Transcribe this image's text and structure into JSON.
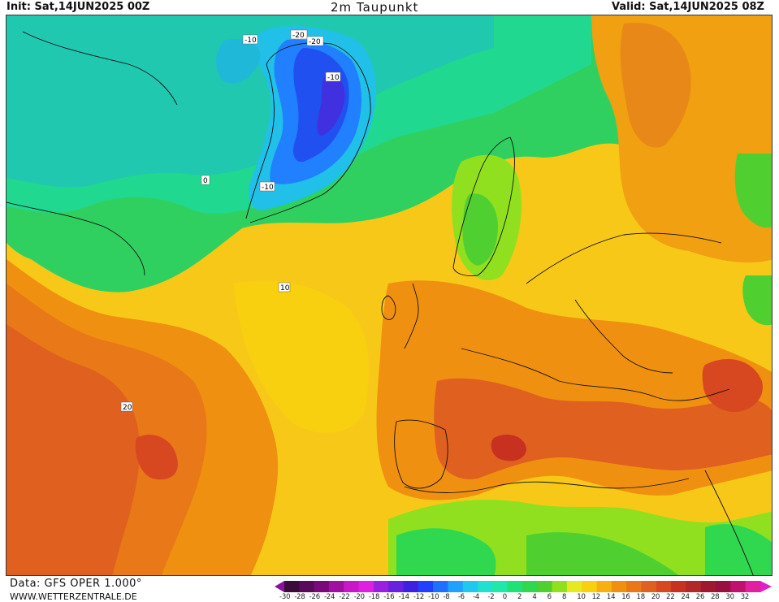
{
  "header": {
    "init": "Init: Sat,14JUN2025 00Z",
    "title": "2m Taupunkt",
    "valid": "Valid: Sat,14JUN2025 08Z"
  },
  "footer": {
    "data_source": "Data: GFS OPER 1.000°",
    "site": "WWW.WETTERZENTRALE.DE"
  },
  "colorbar": {
    "ticks": [
      "-30",
      "-28",
      "-26",
      "-24",
      "-22",
      "-20",
      "-18",
      "-16",
      "-14",
      "-12",
      "-10",
      "-8",
      "-6",
      "-4",
      "-2",
      "0",
      "2",
      "4",
      "6",
      "8",
      "10",
      "12",
      "14",
      "16",
      "18",
      "20",
      "22",
      "24",
      "26",
      "28",
      "30",
      "32"
    ],
    "colors": [
      "#3c0a3c",
      "#5a0a5a",
      "#7a0a7a",
      "#a010a0",
      "#c818c8",
      "#e020e0",
      "#9a20e0",
      "#6a20e0",
      "#4020e0",
      "#2040ff",
      "#2070ff",
      "#20a0ff",
      "#20c8f0",
      "#20e0d0",
      "#20e8a8",
      "#20e078",
      "#30d850",
      "#50d030",
      "#90e020",
      "#e8e820",
      "#f8d010",
      "#f8b010",
      "#f09010",
      "#e87818",
      "#e06020",
      "#d84820",
      "#c83020",
      "#b02828",
      "#a01830",
      "#981040",
      "#c01070",
      "#e020a0"
    ],
    "low_arrow_color": "#8a10a0",
    "high_arrow_color": "#e020c0"
  },
  "map": {
    "contour_labels": [
      "-10",
      "-10",
      "-20",
      "-20",
      "-10",
      "0",
      "10",
      "20"
    ]
  }
}
